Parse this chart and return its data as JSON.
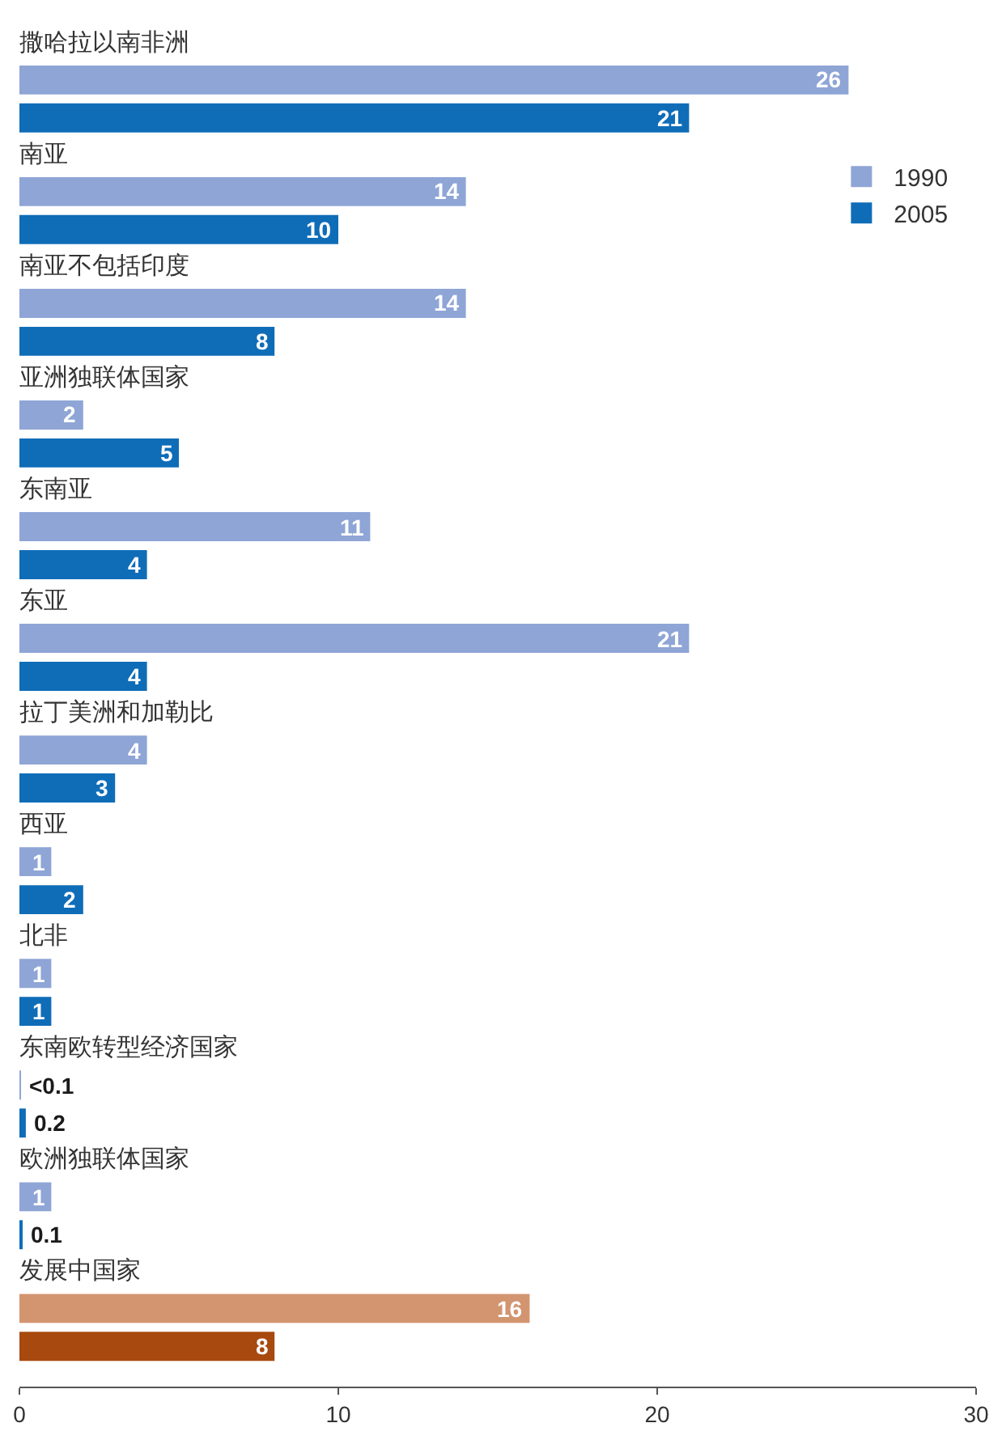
{
  "chart_data": {
    "type": "bar",
    "orientation": "horizontal",
    "categories": [
      "撒哈拉以南非洲",
      "南亚",
      "南亚不包括印度",
      "亚洲独联体国家",
      "东南亚",
      "东亚",
      "拉丁美洲和加勒比",
      "西亚",
      "北非",
      "东南欧转型经济国家",
      "欧洲独联体国家",
      "发展中国家"
    ],
    "series": [
      {
        "name": "1990",
        "color": "#8ea5d6",
        "colors": [
          "#8ea5d6",
          "#8ea5d6",
          "#8ea5d6",
          "#8ea5d6",
          "#8ea5d6",
          "#8ea5d6",
          "#8ea5d6",
          "#8ea5d6",
          "#8ea5d6",
          "#8ea5d6",
          "#8ea5d6",
          "#d29570"
        ],
        "values": [
          26,
          14,
          14,
          2,
          11,
          21,
          4,
          1,
          1,
          0.05,
          1,
          16
        ],
        "value_labels": [
          "26",
          "14",
          "14",
          "2",
          "11",
          "21",
          "4",
          "1",
          "1",
          "<0.1",
          "1",
          "16"
        ]
      },
      {
        "name": "2005",
        "color": "#0f6db8",
        "colors": [
          "#0f6db8",
          "#0f6db8",
          "#0f6db8",
          "#0f6db8",
          "#0f6db8",
          "#0f6db8",
          "#0f6db8",
          "#0f6db8",
          "#0f6db8",
          "#0f6db8",
          "#0f6db8",
          "#a8490f"
        ],
        "values": [
          21,
          10,
          8,
          5,
          4,
          4,
          3,
          2,
          1,
          0.2,
          0.1,
          8
        ],
        "value_labels": [
          "21",
          "10",
          "8",
          "5",
          "4",
          "4",
          "3",
          "2",
          "1",
          "0.2",
          "0.1",
          "8"
        ]
      }
    ],
    "xlim": [
      0,
      30
    ],
    "xticks": [
      0,
      10,
      20,
      30
    ],
    "legend": "top right"
  }
}
